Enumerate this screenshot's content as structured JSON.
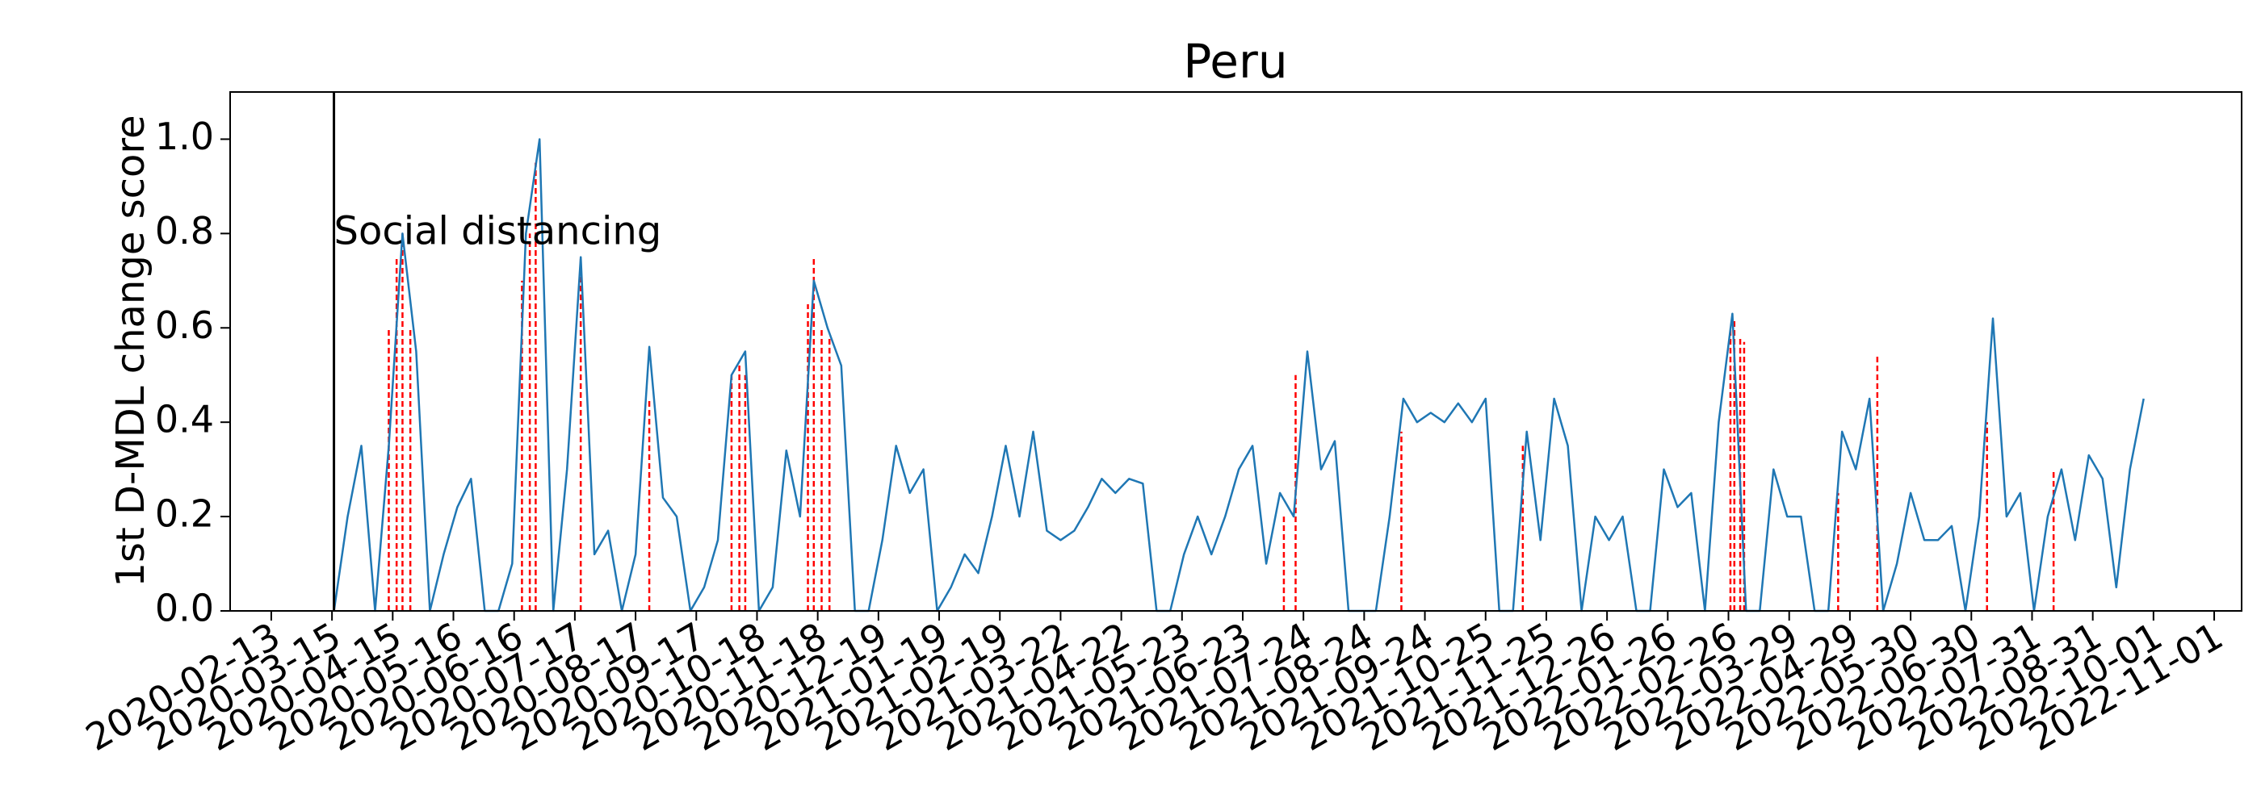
{
  "chart_data": {
    "type": "line",
    "title": "Peru",
    "ylabel": "1st D-MDL change score",
    "color": "#1f77b4",
    "xlim": [
      "2020-01-23",
      "2022-11-15"
    ],
    "xticks": [
      "2020-02-13",
      "2020-03-15",
      "2020-04-15",
      "2020-05-16",
      "2020-06-16",
      "2020-07-17",
      "2020-08-17",
      "2020-09-17",
      "2020-10-18",
      "2020-11-18",
      "2020-12-19",
      "2021-01-19",
      "2021-02-19",
      "2021-03-22",
      "2021-04-22",
      "2021-05-23",
      "2021-06-23",
      "2021-07-24",
      "2021-08-24",
      "2021-09-24",
      "2021-10-25",
      "2021-11-25",
      "2021-12-26",
      "2022-01-26",
      "2022-02-26",
      "2022-03-29",
      "2022-04-29",
      "2022-05-30",
      "2022-06-30",
      "2022-07-31",
      "2022-08-31",
      "2022-10-01",
      "2022-11-01"
    ],
    "ylim": [
      0,
      1.1
    ],
    "yticks": [
      {
        "value": 0,
        "label": "0.0"
      },
      0.2,
      0.4,
      0.6,
      0.8,
      {
        "value": 1,
        "label": "1.0"
      }
    ],
    "x": [
      "2020-03-16",
      "2020-03-23",
      "2020-03-30",
      "2020-04-06",
      "2020-04-13",
      "2020-04-20",
      "2020-04-27",
      "2020-05-04",
      "2020-05-11",
      "2020-05-18",
      "2020-05-25",
      "2020-06-01",
      "2020-06-08",
      "2020-06-15",
      "2020-06-22",
      "2020-06-29",
      "2020-07-06",
      "2020-07-13",
      "2020-07-20",
      "2020-07-27",
      "2020-08-03",
      "2020-08-10",
      "2020-08-17",
      "2020-08-24",
      "2020-08-31",
      "2020-09-07",
      "2020-09-14",
      "2020-09-21",
      "2020-09-28",
      "2020-10-05",
      "2020-10-12",
      "2020-10-19",
      "2020-10-26",
      "2020-11-02",
      "2020-11-09",
      "2020-11-16",
      "2020-11-23",
      "2020-11-30",
      "2020-12-07",
      "2020-12-14",
      "2020-12-21",
      "2020-12-28",
      "2021-01-04",
      "2021-01-11",
      "2021-01-18",
      "2021-01-25",
      "2021-02-01",
      "2021-02-08",
      "2021-02-15",
      "2021-02-22",
      "2021-03-01",
      "2021-03-08",
      "2021-03-15",
      "2021-03-22",
      "2021-03-29",
      "2021-04-05",
      "2021-04-12",
      "2021-04-19",
      "2021-04-26",
      "2021-05-03",
      "2021-05-10",
      "2021-05-17",
      "2021-05-24",
      "2021-05-31",
      "2021-06-07",
      "2021-06-14",
      "2021-06-21",
      "2021-06-28",
      "2021-07-05",
      "2021-07-12",
      "2021-07-19",
      "2021-07-26",
      "2021-08-02",
      "2021-08-09",
      "2021-08-16",
      "2021-08-23",
      "2021-08-30",
      "2021-09-06",
      "2021-09-13",
      "2021-09-20",
      "2021-09-27",
      "2021-10-04",
      "2021-10-11",
      "2021-10-18",
      "2021-10-25",
      "2021-11-01",
      "2021-11-08",
      "2021-11-15",
      "2021-11-22",
      "2021-11-29",
      "2021-12-06",
      "2021-12-13",
      "2021-12-20",
      "2021-12-27",
      "2022-01-03",
      "2022-01-10",
      "2022-01-17",
      "2022-01-24",
      "2022-01-31",
      "2022-02-07",
      "2022-02-14",
      "2022-02-21",
      "2022-02-28",
      "2022-03-07",
      "2022-03-14",
      "2022-03-21",
      "2022-03-28",
      "2022-04-04",
      "2022-04-11",
      "2022-04-18",
      "2022-04-25",
      "2022-05-02",
      "2022-05-09",
      "2022-05-16",
      "2022-05-23",
      "2022-05-30",
      "2022-06-06",
      "2022-06-13",
      "2022-06-20",
      "2022-06-27",
      "2022-07-04",
      "2022-07-11",
      "2022-07-18",
      "2022-07-25",
      "2022-08-01",
      "2022-08-08",
      "2022-08-15",
      "2022-08-22",
      "2022-08-29",
      "2022-09-05",
      "2022-09-12",
      "2022-09-19",
      "2022-09-26"
    ],
    "values": [
      0,
      0.2,
      0.35,
      0,
      0.35,
      0.8,
      0.55,
      0,
      0.12,
      0.22,
      0.28,
      0,
      0,
      0.1,
      0.8,
      1.0,
      0,
      0.3,
      0.75,
      0.12,
      0.17,
      0,
      0.12,
      0.56,
      0.24,
      0.2,
      0,
      0.05,
      0.15,
      0.5,
      0.55,
      0,
      0.05,
      0.34,
      0.2,
      0.7,
      0.6,
      0.52,
      0,
      0,
      0.15,
      0.35,
      0.25,
      0.3,
      0,
      0.05,
      0.12,
      0.08,
      0.2,
      0.35,
      0.2,
      0.38,
      0.17,
      0.15,
      0.17,
      0.22,
      0.28,
      0.25,
      0.28,
      0.27,
      0,
      0,
      0.12,
      0.2,
      0.12,
      0.2,
      0.3,
      0.35,
      0.1,
      0.25,
      0.2,
      0.55,
      0.3,
      0.36,
      0,
      0,
      0,
      0.2,
      0.45,
      0.4,
      0.42,
      0.4,
      0.44,
      0.4,
      0.45,
      0,
      0,
      0.38,
      0.15,
      0.45,
      0.35,
      0,
      0.2,
      0.15,
      0.2,
      0,
      0,
      0.3,
      0.22,
      0.25,
      0,
      0.4,
      0.63,
      0,
      0,
      0.3,
      0.2,
      0.2,
      0,
      0,
      0.38,
      0.3,
      0.45,
      0,
      0.1,
      0.25,
      0.15,
      0.15,
      0.18,
      0,
      0.2,
      0.62,
      0.2,
      0.25,
      0,
      0.2,
      0.3,
      0.15,
      0.33,
      0.28,
      0.05,
      0.3,
      0.45
    ],
    "alarms": {
      "color": "#ff0000",
      "x": [
        "2020-04-13",
        "2020-04-17",
        "2020-04-20",
        "2020-04-24",
        "2020-06-20",
        "2020-06-24",
        "2020-06-27",
        "2020-07-20",
        "2020-08-24",
        "2020-10-05",
        "2020-10-09",
        "2020-10-12",
        "2020-11-13",
        "2020-11-16",
        "2020-11-20",
        "2020-11-24",
        "2021-07-14",
        "2021-07-20",
        "2021-09-12",
        "2021-11-13",
        "2022-02-27",
        "2022-03-01",
        "2022-03-04",
        "2022-03-06",
        "2022-04-23",
        "2022-05-13",
        "2022-07-08",
        "2022-08-11"
      ],
      "values": [
        0.6,
        0.75,
        0.8,
        0.6,
        0.7,
        0.8,
        0.95,
        0.75,
        0.45,
        0.5,
        0.52,
        0.5,
        0.65,
        0.75,
        0.6,
        0.58,
        0.2,
        0.5,
        0.38,
        0.35,
        0.6,
        0.62,
        0.58,
        0.57,
        0.25,
        0.54,
        0.4,
        0.3
      ]
    },
    "annotations": [
      {
        "x": "2020-03-16",
        "text": "Social distancing",
        "color": "#000000"
      }
    ]
  }
}
